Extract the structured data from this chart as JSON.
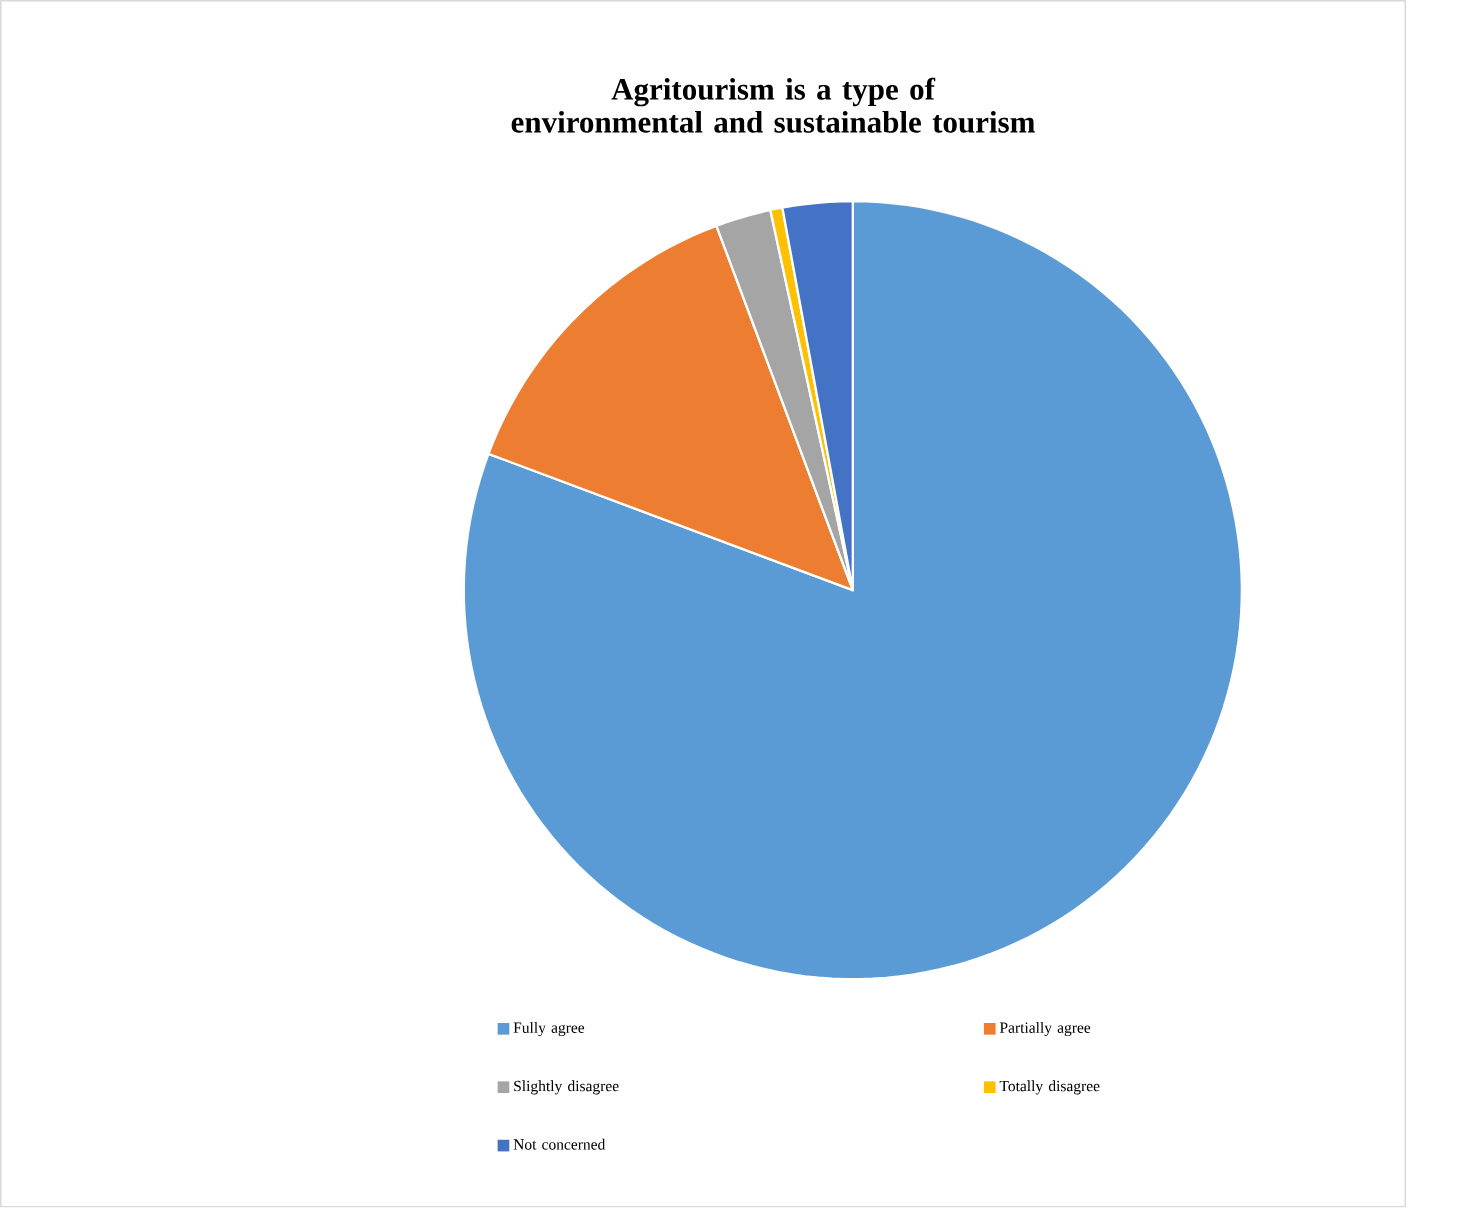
{
  "chart_data": {
    "type": "pie",
    "title": "Agritourism is a type of environmental and sustainable tourism",
    "categories": [
      "Fully agree",
      "Partially agree",
      "Slightly disagree",
      "Totally disagree",
      "Not concerned"
    ],
    "values": [
      80.7,
      13.6,
      2.3,
      0.5,
      2.9
    ],
    "colors": [
      "#5b9bd5",
      "#ed7d31",
      "#a5a5a5",
      "#ffc000",
      "#4472c4"
    ],
    "legend": "bottom"
  }
}
